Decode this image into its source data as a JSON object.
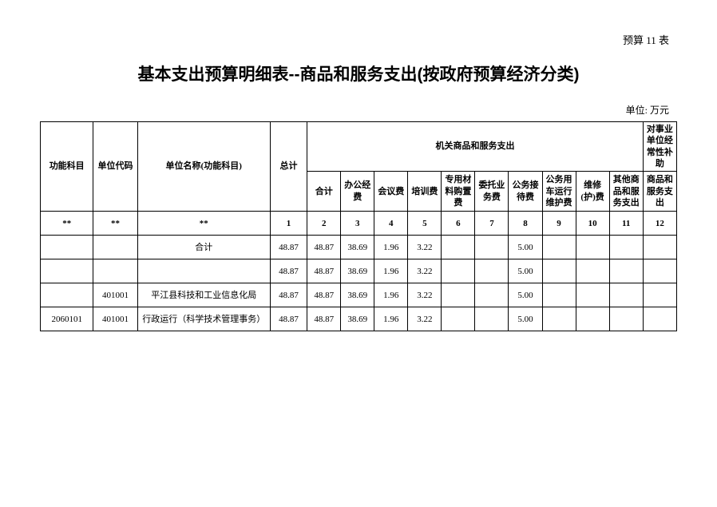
{
  "top_label": "预算 11 表",
  "title": "基本支出预算明细表--商品和服务支出(按政府预算经济分类)",
  "unit": "单位: 万元",
  "headers": {
    "func_subject": "功能科目",
    "unit_code": "单位代码",
    "unit_name": "单位名称(功能科目)",
    "total": "总计",
    "group_agency": "机关商品和服务支出",
    "group_subsidy": "对事业单位经常性补助",
    "subtotal": "合计",
    "office_exp": "办公经费",
    "meeting": "会议费",
    "training": "培训费",
    "special_mat": "专用材料购置费",
    "entrust": "委托业务费",
    "official_recv": "公务接待费",
    "vehicle": "公务用车运行维护费",
    "repair": "维修(护)费",
    "other_goods": "其他商品和服务支出",
    "goods_svc_out": "商品和服务支出"
  },
  "index_row": {
    "c0": "**",
    "c1": "**",
    "c2": "**",
    "nums": [
      "1",
      "2",
      "3",
      "4",
      "5",
      "6",
      "7",
      "8",
      "9",
      "10",
      "11",
      "12"
    ]
  },
  "rows": [
    {
      "func": "",
      "code": "",
      "name": "合计",
      "vals": [
        "48.87",
        "48.87",
        "38.69",
        "1.96",
        "3.22",
        "",
        "",
        "5.00",
        "",
        "",
        "",
        ""
      ]
    },
    {
      "func": "",
      "code": "",
      "name": "",
      "vals": [
        "48.87",
        "48.87",
        "38.69",
        "1.96",
        "3.22",
        "",
        "",
        "5.00",
        "",
        "",
        "",
        ""
      ]
    },
    {
      "func": "",
      "code": "401001",
      "name": "平江县科技和工业信息化局",
      "vals": [
        "48.87",
        "48.87",
        "38.69",
        "1.96",
        "3.22",
        "",
        "",
        "5.00",
        "",
        "",
        "",
        ""
      ]
    },
    {
      "func": "2060101",
      "code": "401001",
      "name": "行政运行（科学技术管理事务）",
      "vals": [
        "48.87",
        "48.87",
        "38.69",
        "1.96",
        "3.22",
        "",
        "",
        "5.00",
        "",
        "",
        "",
        ""
      ]
    }
  ]
}
